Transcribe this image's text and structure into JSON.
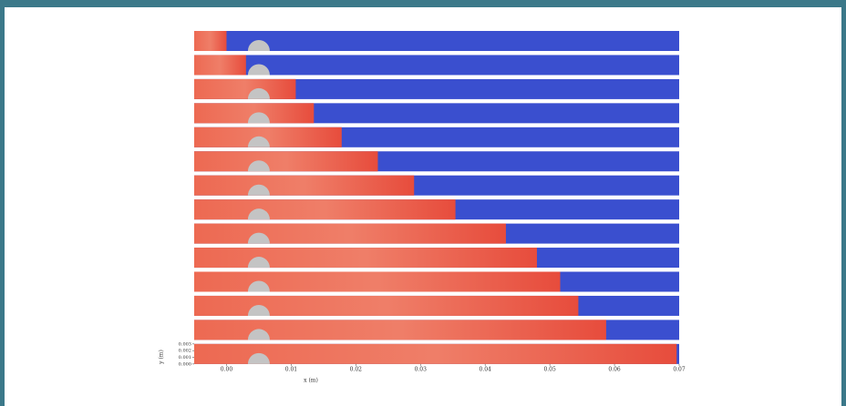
{
  "chart_data": {
    "type": "strips",
    "x_label": "x (m)",
    "y_label": "y (m)",
    "xlim": [
      -0.005,
      0.07
    ],
    "ylim": [
      0,
      0.003
    ],
    "xticks": [
      {
        "value": 0,
        "label": "0.00"
      },
      {
        "value": 0.01,
        "label": "0.01"
      },
      {
        "value": 0.02,
        "label": "0.02"
      },
      {
        "value": 0.03,
        "label": "0.03"
      },
      {
        "value": 0.04,
        "label": "0.04"
      },
      {
        "value": 0.05,
        "label": "0.05"
      },
      {
        "value": 0.06,
        "label": "0.06"
      },
      {
        "value": 0.07,
        "label": "0.07"
      }
    ],
    "yticks": [
      {
        "value": 0,
        "label": "0.000"
      },
      {
        "value": 0.001,
        "label": "0.001"
      },
      {
        "value": 0.002,
        "label": "0.002"
      },
      {
        "value": 0.003,
        "label": "0.003"
      }
    ],
    "obstacle_x": 0.005,
    "burned_color": "#e9553f",
    "unburned_color": "#3a4fcf",
    "obstacle_color": "#c4c4c4",
    "front_x": [
      0.0,
      0.003,
      0.0107,
      0.0135,
      0.0178,
      0.0234,
      0.029,
      0.0354,
      0.0432,
      0.048,
      0.0516,
      0.0544,
      0.0587,
      0.0696
    ]
  }
}
